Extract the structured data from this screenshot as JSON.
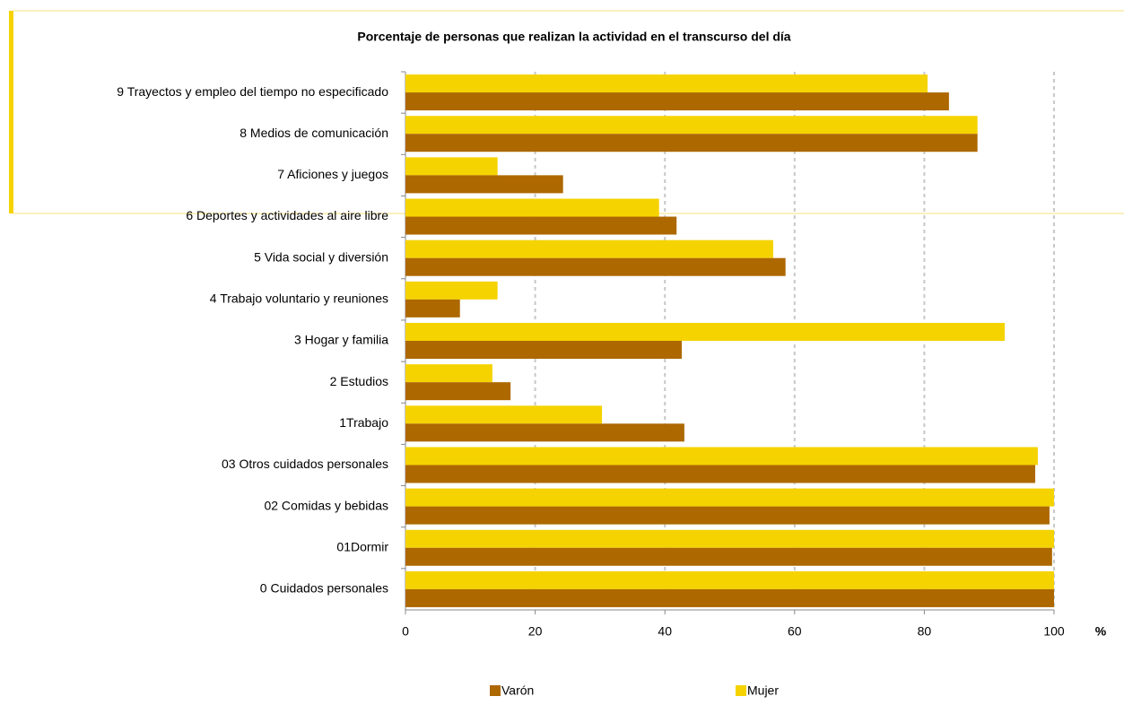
{
  "chart_data": {
    "type": "barh",
    "title": "Porcentaje de personas que realizan la actividad en el transcurso del día",
    "x_label": "%",
    "categories": [
      "9 Trayectos y empleo del tiempo no especificado",
      "8 Medios de comunicación",
      "7 Aficiones y juegos",
      "6 Deportes y actividades al aire libre",
      "5 Vida social y diversión",
      "4 Trabajo voluntario y reuniones",
      "3 Hogar y familia",
      "2 Estudios",
      "1Trabajo",
      "03 Otros cuidados personales",
      "02 Comidas y bebidas",
      "01Dormir",
      "0 Cuidados personales"
    ],
    "series": [
      {
        "name": "Varón",
        "color": "#ad6800",
        "values": [
          83.8,
          88.2,
          24.3,
          41.8,
          58.6,
          8.4,
          42.6,
          16.2,
          43.0,
          97.1,
          99.3,
          99.7,
          100
        ]
      },
      {
        "name": "Mujer",
        "color": "#f5d300",
        "values": [
          80.5,
          88.2,
          14.2,
          39.1,
          56.7,
          14.2,
          92.4,
          13.4,
          30.3,
          97.5,
          100,
          100,
          100
        ]
      }
    ],
    "xlim": [
      0,
      100
    ],
    "xticks": [
      0,
      20,
      40,
      60,
      80,
      100
    ],
    "grid": true,
    "legend": "bottom"
  }
}
